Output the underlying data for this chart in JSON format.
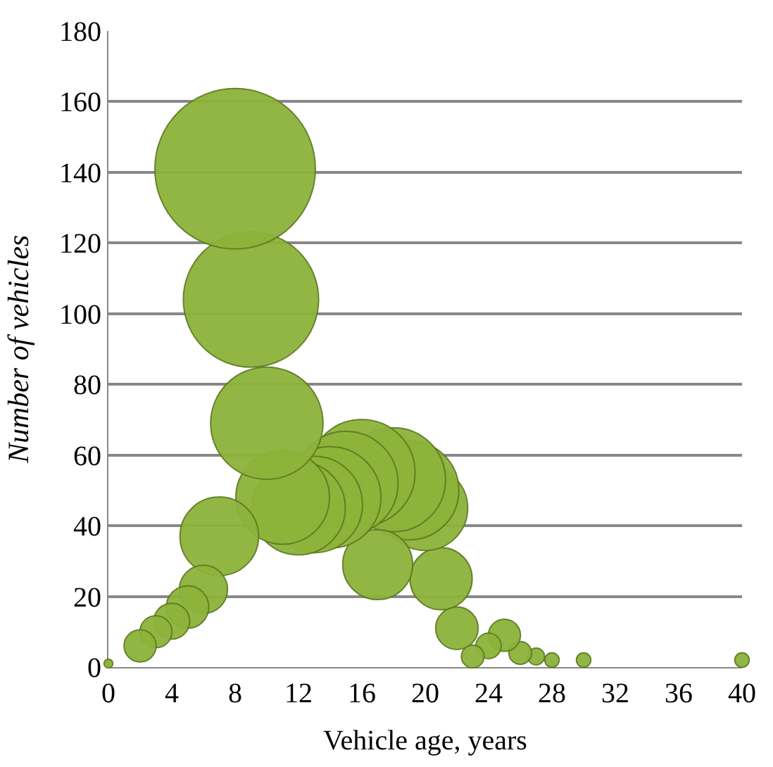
{
  "chart_data": {
    "type": "bubble",
    "xlabel": "Vehicle age, years",
    "ylabel": "Number of vehicles",
    "x": [
      0,
      2,
      3,
      4,
      5,
      6,
      7,
      8,
      9,
      10,
      11,
      12,
      13,
      14,
      15,
      16,
      17,
      18,
      19,
      20,
      21,
      22,
      23,
      24,
      25,
      26,
      27,
      28,
      30,
      40
    ],
    "values": [
      1,
      6,
      10,
      13,
      17,
      22,
      37,
      141,
      104,
      69,
      48,
      45,
      46,
      48,
      52,
      55,
      29,
      53,
      50,
      45,
      25,
      11,
      3,
      6,
      9,
      4,
      3,
      2,
      2,
      2
    ],
    "sizes": [
      0.003,
      0.04,
      0.04,
      0.05,
      0.07,
      0.09,
      0.24,
      1,
      0.71,
      0.49,
      0.34,
      0.34,
      0.36,
      0.4,
      0.42,
      0.44,
      0.19,
      0.42,
      0.38,
      0.28,
      0.15,
      0.07,
      0.02,
      0.025,
      0.04,
      0.02,
      0.011,
      0.008,
      0.008,
      0.008
    ],
    "color": "#8db33a",
    "xlim": [
      0,
      40
    ],
    "xticks": [
      0,
      4,
      8,
      12,
      16,
      20,
      24,
      28,
      32,
      36,
      40
    ],
    "ylim": [
      0,
      180
    ],
    "yticks": [
      0,
      20,
      40,
      60,
      80,
      100,
      120,
      140,
      160,
      180
    ],
    "grid": "y"
  }
}
